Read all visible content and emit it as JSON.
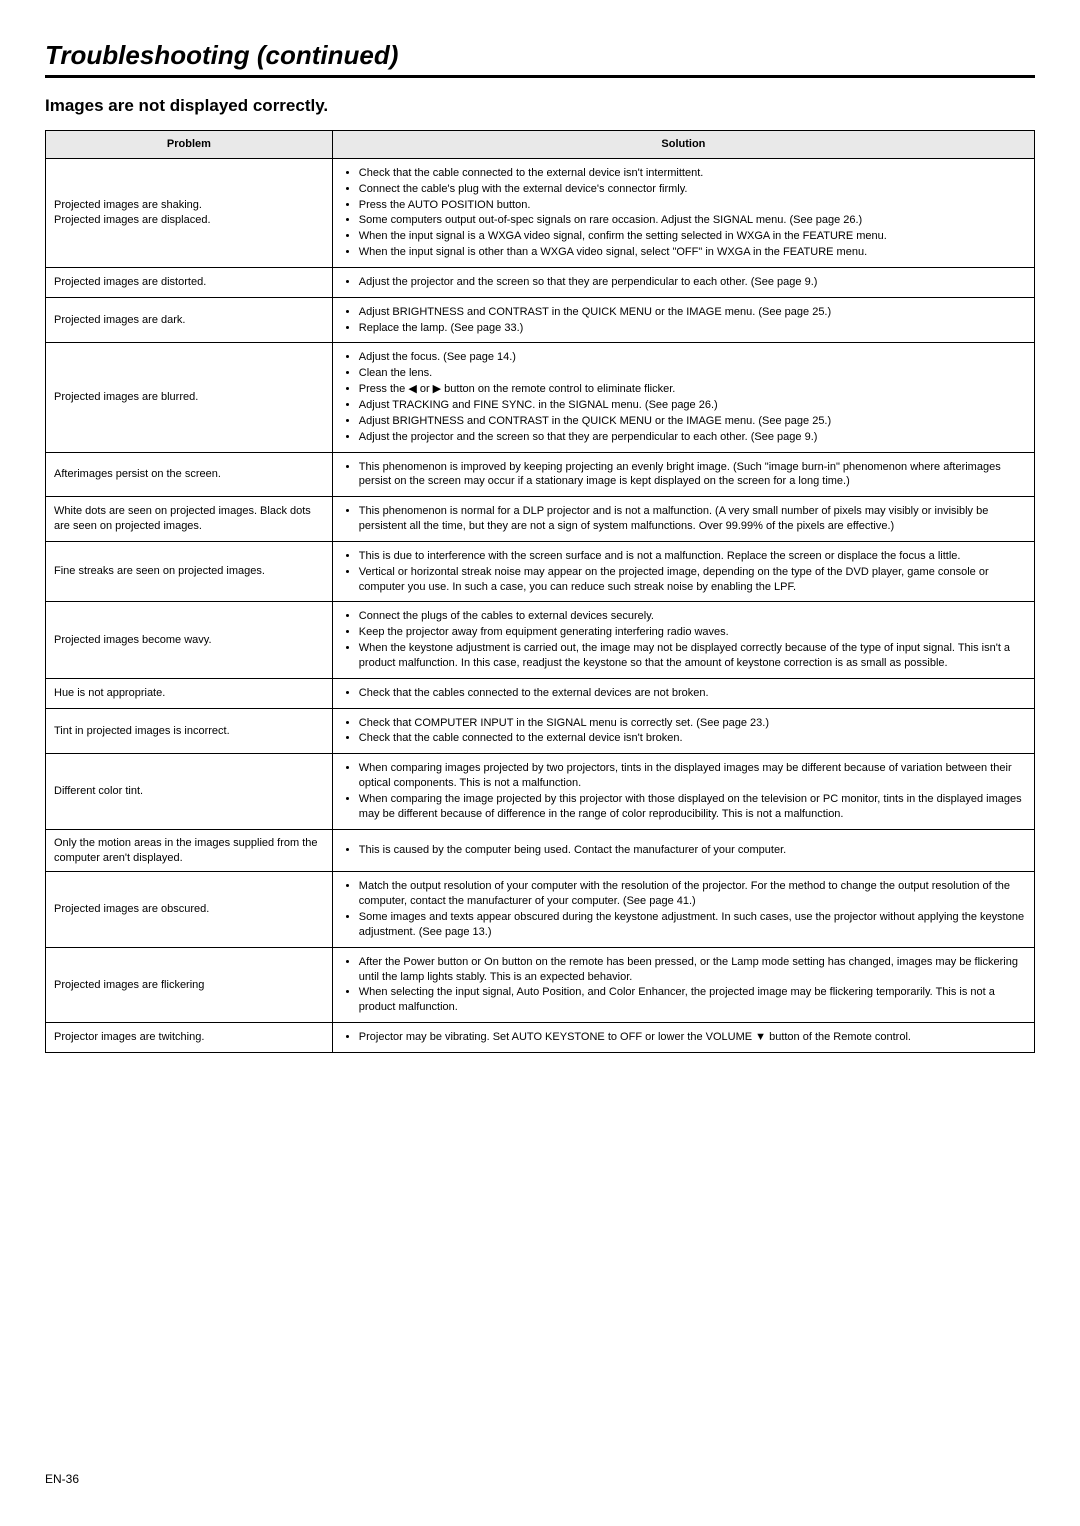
{
  "page": {
    "title": "Troubleshooting (continued)",
    "section": "Images are not displayed correctly.",
    "footer": "EN-36"
  },
  "table": {
    "headers": {
      "problem": "Problem",
      "solution": "Solution"
    },
    "rows": [
      {
        "problem": "Projected images are shaking.\nProjected images are displaced.",
        "solutions": [
          "Check that the cable connected to the external device isn't intermittent.",
          "Connect the cable's plug with the external device's connector firmly.",
          "Press the AUTO POSITION button.",
          "Some computers output out-of-spec signals on rare occasion. Adjust the SIGNAL menu. (See page 26.)",
          "When the input signal is a WXGA video signal, confirm the setting selected in WXGA in the FEATURE menu.",
          "When the input signal is other than a WXGA video signal, select \"OFF\" in WXGA in the FEATURE menu."
        ]
      },
      {
        "problem": "Projected images are distorted.",
        "solutions": [
          "Adjust the projector and the screen so that they are perpendicular to each other. (See page 9.)"
        ]
      },
      {
        "problem": "Projected images are dark.",
        "solutions": [
          "Adjust BRIGHTNESS and CONTRAST in the QUICK MENU or the IMAGE menu. (See page 25.)",
          "Replace the lamp. (See page 33.)"
        ]
      },
      {
        "problem": "Projected images are blurred.",
        "solutions": [
          "Adjust the focus. (See page 14.)",
          "Clean the lens.",
          "Press the ◀ or ▶ button on the remote control to eliminate flicker.",
          "Adjust TRACKING and FINE SYNC. in the SIGNAL menu. (See page 26.)",
          "Adjust BRIGHTNESS and CONTRAST in the QUICK MENU or the IMAGE menu. (See page 25.)",
          "Adjust the projector and the screen so that they are perpendicular to each other. (See page 9.)"
        ]
      },
      {
        "problem": "Afterimages persist on the screen.",
        "solutions": [
          "This phenomenon is improved by keeping projecting an evenly bright image. (Such \"image burn-in\" phenomenon where afterimages persist on the screen may occur if a stationary image is kept displayed on the screen for a long time.)"
        ]
      },
      {
        "problem": "White dots are seen on projected images. Black dots are seen on projected images.",
        "solutions": [
          "This phenomenon is normal for a DLP projector and is not a malfunction. (A very small number of pixels may visibly or invisibly be persistent all the time, but they are not a sign of system malfunctions. Over 99.99% of the pixels are effective.)"
        ]
      },
      {
        "problem": "Fine streaks are seen on projected images.",
        "solutions": [
          "This is due to interference with the screen surface and is not a malfunction. Replace the screen or displace the focus a little.",
          "Vertical or horizontal streak noise may appear on the projected image, depending on the type of the DVD player, game console or computer you use. In such a case, you can reduce such streak noise by enabling the LPF."
        ]
      },
      {
        "problem": "Projected images become wavy.",
        "solutions": [
          "Connect the plugs of the cables to external devices securely.",
          "Keep the projector away from equipment generating interfering radio waves.",
          "When the keystone adjustment is carried out, the image may not be displayed correctly because of the type of input signal. This isn't a product malfunction. In this case, readjust the keystone so that the amount of keystone correction is as small as possible."
        ]
      },
      {
        "problem": "Hue is not appropriate.",
        "solutions": [
          "Check that the cables connected to the external devices are not broken."
        ]
      },
      {
        "problem": "Tint in projected images is incorrect.",
        "solutions": [
          "Check that COMPUTER INPUT in the SIGNAL menu is correctly set. (See page 23.)",
          "Check that the cable connected to the external device isn't broken."
        ]
      },
      {
        "problem": "Different color tint.",
        "solutions": [
          "When comparing images projected by two projectors, tints in the displayed images may be different because of variation between their optical components. This is not a malfunction.",
          "When comparing the image projected by this projector with those displayed on the television or PC monitor, tints in the displayed images may be different because of difference in the range of color reproducibility. This is not a malfunction."
        ]
      },
      {
        "problem": "Only the motion areas in the images supplied from the computer aren't displayed.",
        "solutions": [
          "This is caused by the computer being used. Contact the manufacturer of your computer."
        ]
      },
      {
        "problem": "Projected images are obscured.",
        "solutions": [
          "Match the output resolution of your computer with the resolution of the projector. For the method to change the output resolution of the computer, contact the manufacturer of your computer. (See page 41.)",
          "Some images and texts appear obscured during the keystone adjustment. In such cases, use the projector without applying the keystone adjustment. (See page 13.)"
        ]
      },
      {
        "problem": "Projected images are flickering",
        "solutions": [
          "After the Power button or On button on the remote has been pressed, or the Lamp mode setting has changed, images may be flickering until the lamp lights stably. This is an expected behavior.",
          "When selecting the input signal, Auto Position, and Color Enhancer, the projected image may be flickering temporarily. This is not a product malfunction."
        ]
      },
      {
        "problem": "Projector images are twitching.",
        "solutions": [
          "Projector may be vibrating. Set AUTO KEYSTONE to OFF or lower the VOLUME ▼ button of the Remote control."
        ]
      }
    ]
  }
}
